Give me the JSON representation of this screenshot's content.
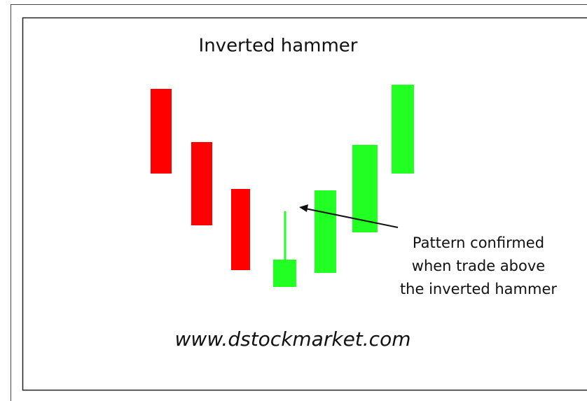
{
  "title": "Inverted hammer",
  "annotation": [
    "Pattern confirmed",
    "when trade above",
    "the inverted hammer"
  ],
  "watermark": "www.dstockmarket.com"
}
